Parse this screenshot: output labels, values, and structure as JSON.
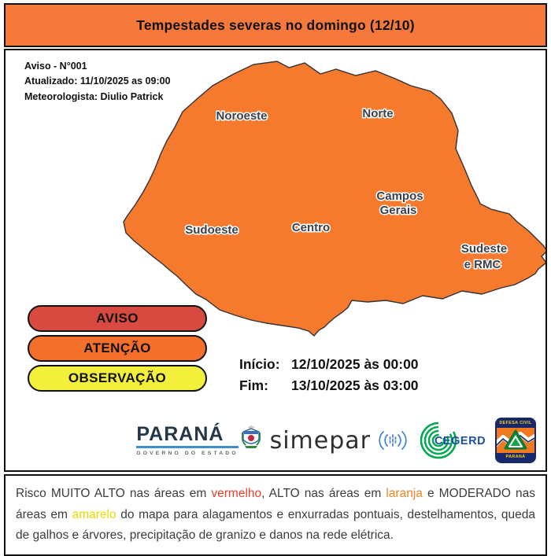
{
  "header": {
    "title": "Tempestades severas no domingo (12/10)"
  },
  "info": {
    "notice_number": "Aviso - N°001",
    "updated": "Atualizado: 11/10/2025 as 09:00",
    "meteorologist": "Meteorologista: Diulio Patrick"
  },
  "map": {
    "regions": {
      "noroeste": "Noroeste",
      "norte": "Norte",
      "campos_gerais_line1": "Campos",
      "campos_gerais_line2": "Gerais",
      "centro": "Centro",
      "sudoeste": "Sudoeste",
      "sudeste_line1": "Sudeste",
      "sudeste_line2": "e RMC"
    },
    "colors": {
      "aviso_red": "#d24f46",
      "atencao_orange": "#f57a2e",
      "observacao_yellow": "#f4f348",
      "outline": "#333333"
    }
  },
  "legend": [
    {
      "label": "AVISO",
      "color": "#d8493f"
    },
    {
      "label": "ATENÇÃO",
      "color": "#f46f2a"
    },
    {
      "label": "OBSERVAÇÃO",
      "color": "#f2f03a"
    }
  ],
  "period": {
    "start_label": "Início:",
    "start_value": "12/10/2025 às 00:00",
    "end_label": "Fim:",
    "end_value": "13/10/2025 às 03:00"
  },
  "logos": {
    "parana": {
      "name": "PARANÁ",
      "subtitle": "GOVERNO DO ESTADO"
    },
    "simepar": {
      "name": "simepar"
    },
    "cegerd": {
      "name": "CEGERD"
    },
    "defesa_civil": {
      "top": "DEFESA CIVIL",
      "bottom": "PARANÁ"
    }
  },
  "footer": {
    "segments": [
      {
        "text": "Risco MUITO ALTO nas áreas em ",
        "style": "plain"
      },
      {
        "text": "vermelho",
        "style": "red"
      },
      {
        "text": ", ALTO nas áreas em ",
        "style": "plain"
      },
      {
        "text": "laranja",
        "style": "orange"
      },
      {
        "text": " e MODERADO nas áreas em ",
        "style": "plain"
      },
      {
        "text": "amarelo",
        "style": "yellow"
      },
      {
        "text": " do mapa para alagamentos e enxurradas pontuais, destelhamentos, queda de galhos e árvores, precipitação de granizo e danos na rede elétrica.",
        "style": "plain"
      }
    ]
  }
}
